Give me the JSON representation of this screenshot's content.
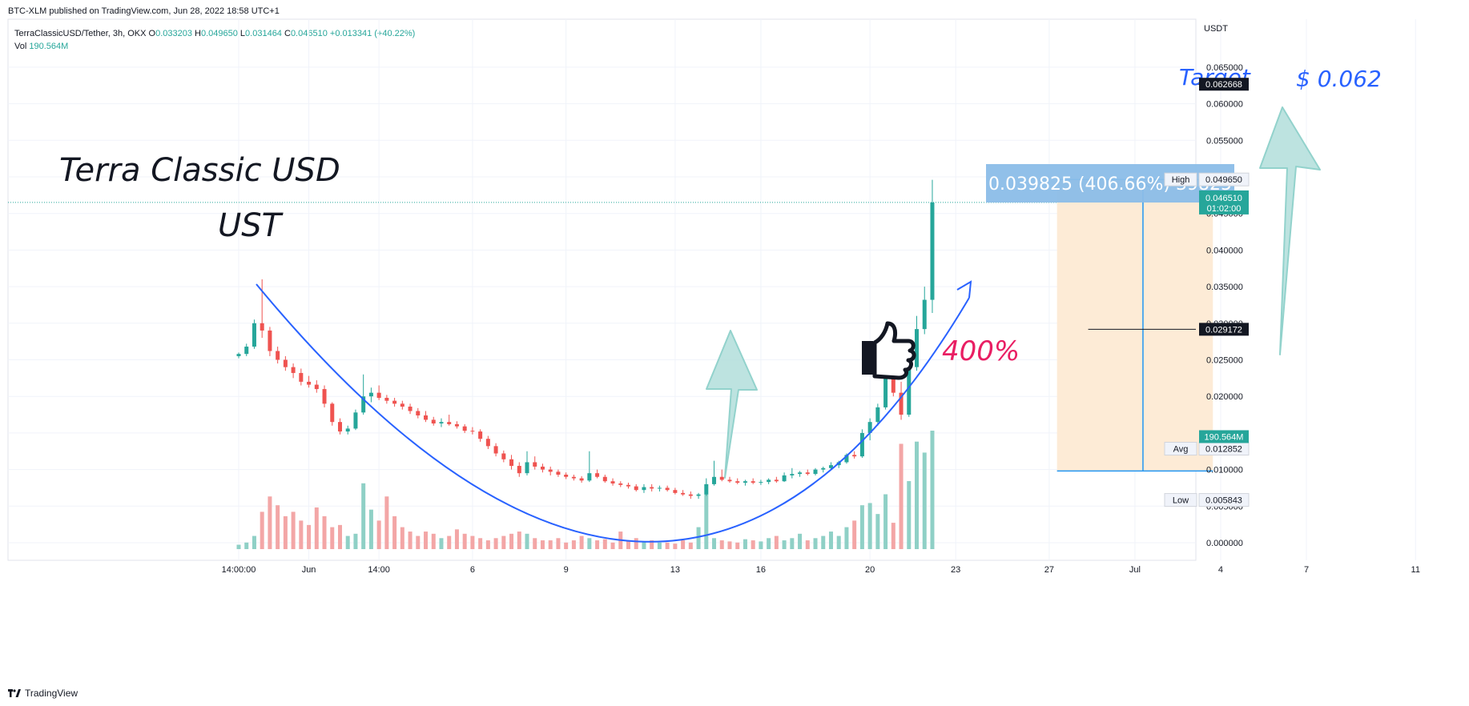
{
  "header": {
    "published": "BTC-XLM published on TradingView.com, Jun 28, 2022 18:58 UTC+1",
    "symbol": "TerraClassicUSD/Tether, 3h, OKX",
    "ohlc": [
      {
        "k": "O",
        "v": "0.033203"
      },
      {
        "k": "H",
        "v": "0.049650"
      },
      {
        "k": "L",
        "v": "0.031464"
      },
      {
        "k": "C",
        "v": "0.046510"
      },
      {
        "k": "",
        "v": "+0.013341 (+40.22%)"
      }
    ],
    "vol_label": "Vol",
    "vol_value": "190.564M"
  },
  "footer": {
    "brand": "TradingView"
  },
  "colors": {
    "up": "#26a69a",
    "down": "#ef5350",
    "vol_up": "#8fd0c6",
    "vol_down": "#f3a6a6",
    "curve": "#2962ff",
    "measure": "#2196f3",
    "range_fill": "#fdebd6",
    "arrow_fill": "#b2dfdb",
    "arrow_stroke": "#80cbc4"
  },
  "chart_data": {
    "type": "candlestick",
    "pair": "TerraClassicUSD/Tether",
    "interval": "3h",
    "exchange": "OKX",
    "y_unit": "USDT",
    "ylim": [
      -0.0003,
      0.0678
    ],
    "y_ticks": [
      {
        "v": 0.0,
        "label": "0.000000"
      },
      {
        "v": 0.005,
        "label": "0.005000"
      },
      {
        "v": 0.01,
        "label": "0.010000"
      },
      {
        "v": 0.015,
        "label": "0.015000"
      },
      {
        "v": 0.02,
        "label": "0.020000"
      },
      {
        "v": 0.025,
        "label": "0.025000"
      },
      {
        "v": 0.03,
        "label": "0.030000"
      },
      {
        "v": 0.035,
        "label": "0.035000"
      },
      {
        "v": 0.04,
        "label": "0.040000"
      },
      {
        "v": 0.045,
        "label": "0.045000"
      },
      {
        "v": 0.05,
        "label": "0.050000"
      },
      {
        "v": 0.055,
        "label": "0.055000"
      },
      {
        "v": 0.06,
        "label": "0.060000"
      },
      {
        "v": 0.065,
        "label": "0.065000"
      }
    ],
    "x_ticks": [
      {
        "t": 0,
        "label": "14:00:00"
      },
      {
        "t": 9,
        "label": "Jun"
      },
      {
        "t": 18,
        "label": "14:00"
      },
      {
        "t": 30,
        "label": "6"
      },
      {
        "t": 42,
        "label": "9"
      },
      {
        "t": 56,
        "label": "13"
      },
      {
        "t": 67,
        "label": "16"
      },
      {
        "t": 81,
        "label": "20"
      },
      {
        "t": 92,
        "label": "23"
      },
      {
        "t": 104,
        "label": "27"
      },
      {
        "t": 115,
        "label": "Jul"
      },
      {
        "t": 126,
        "label": "4"
      },
      {
        "t": 137,
        "label": "7"
      },
      {
        "t": 151,
        "label": "11"
      }
    ],
    "price_labels": [
      {
        "name": "High",
        "label": "High",
        "value": "0.049650",
        "v": 0.04965
      },
      {
        "name": "Last",
        "label": "",
        "value": "0.046510",
        "countdown": "01:02:00",
        "v": 0.04651
      },
      {
        "name": "Avg",
        "label": "Avg",
        "value": "0.012852",
        "v": 0.012852
      },
      {
        "name": "Low",
        "label": "Low",
        "value": "0.005843",
        "v": 0.005843
      },
      {
        "name": "Volume",
        "label": "",
        "value": "190.564M",
        "v": 0.0145
      }
    ],
    "horizontal_lines": [
      {
        "value": "0.062668",
        "v": 0.062668,
        "t_start": 126
      },
      {
        "value": "0.029172",
        "v": 0.029172,
        "t_start": 109
      }
    ],
    "measure": {
      "label": "0.039825 (406.66%) 39825",
      "from": 0.0098,
      "to": 0.04965,
      "t_start": 105,
      "t_end": 125
    },
    "candles": [
      [
        0.0255,
        0.026,
        0.0252,
        0.0258
      ],
      [
        0.0258,
        0.0272,
        0.0255,
        0.0268
      ],
      [
        0.0268,
        0.0305,
        0.0265,
        0.03
      ],
      [
        0.03,
        0.036,
        0.028,
        0.029
      ],
      [
        0.029,
        0.0295,
        0.0255,
        0.0262
      ],
      [
        0.0262,
        0.0268,
        0.0245,
        0.025
      ],
      [
        0.025,
        0.0255,
        0.0235,
        0.024
      ],
      [
        0.024,
        0.0245,
        0.0225,
        0.0232
      ],
      [
        0.0232,
        0.0238,
        0.0215,
        0.022
      ],
      [
        0.022,
        0.0228,
        0.0212,
        0.0216
      ],
      [
        0.0216,
        0.0222,
        0.0205,
        0.021
      ],
      [
        0.021,
        0.0215,
        0.0185,
        0.019
      ],
      [
        0.019,
        0.0192,
        0.016,
        0.0165
      ],
      [
        0.0165,
        0.017,
        0.0148,
        0.0152
      ],
      [
        0.0152,
        0.016,
        0.0148,
        0.0156
      ],
      [
        0.0156,
        0.0182,
        0.0154,
        0.0178
      ],
      [
        0.0178,
        0.023,
        0.0175,
        0.02
      ],
      [
        0.02,
        0.0212,
        0.0192,
        0.0205
      ],
      [
        0.0205,
        0.0215,
        0.0195,
        0.0198
      ],
      [
        0.0198,
        0.0202,
        0.019,
        0.0194
      ],
      [
        0.0194,
        0.0198,
        0.0186,
        0.019
      ],
      [
        0.019,
        0.0194,
        0.0182,
        0.0186
      ],
      [
        0.0186,
        0.019,
        0.0176,
        0.018
      ],
      [
        0.018,
        0.0184,
        0.017,
        0.0174
      ],
      [
        0.0174,
        0.018,
        0.0165,
        0.0168
      ],
      [
        0.0168,
        0.0172,
        0.016,
        0.0163
      ],
      [
        0.0163,
        0.017,
        0.0158,
        0.0165
      ],
      [
        0.0165,
        0.0175,
        0.016,
        0.0162
      ],
      [
        0.0162,
        0.0166,
        0.0156,
        0.0159
      ],
      [
        0.0159,
        0.0162,
        0.015,
        0.0153
      ],
      [
        0.0153,
        0.0158,
        0.0148,
        0.0152
      ],
      [
        0.0152,
        0.0155,
        0.0138,
        0.0142
      ],
      [
        0.0142,
        0.0146,
        0.0128,
        0.0132
      ],
      [
        0.0132,
        0.0136,
        0.0118,
        0.0122
      ],
      [
        0.0122,
        0.0126,
        0.011,
        0.0114
      ],
      [
        0.0114,
        0.012,
        0.01,
        0.0105
      ],
      [
        0.0105,
        0.011,
        0.009,
        0.0095
      ],
      [
        0.0095,
        0.0125,
        0.0092,
        0.011
      ],
      [
        0.011,
        0.0118,
        0.01,
        0.0104
      ],
      [
        0.0104,
        0.0108,
        0.0096,
        0.01
      ],
      [
        0.01,
        0.0104,
        0.0092,
        0.0097
      ],
      [
        0.0097,
        0.01,
        0.009,
        0.0093
      ],
      [
        0.0093,
        0.0096,
        0.0087,
        0.009
      ],
      [
        0.009,
        0.0093,
        0.0085,
        0.0088
      ],
      [
        0.0088,
        0.0091,
        0.0082,
        0.0085
      ],
      [
        0.0085,
        0.0125,
        0.0083,
        0.0095
      ],
      [
        0.0095,
        0.01,
        0.0088,
        0.009
      ],
      [
        0.009,
        0.0093,
        0.0082,
        0.0084
      ],
      [
        0.0084,
        0.0088,
        0.0078,
        0.0081
      ],
      [
        0.0081,
        0.0084,
        0.0076,
        0.0079
      ],
      [
        0.0079,
        0.0082,
        0.0074,
        0.0077
      ],
      [
        0.0077,
        0.008,
        0.007,
        0.0072
      ],
      [
        0.0072,
        0.008,
        0.0068,
        0.0076
      ],
      [
        0.0076,
        0.008,
        0.007,
        0.0074
      ],
      [
        0.0074,
        0.0078,
        0.007,
        0.0075
      ],
      [
        0.0075,
        0.0078,
        0.007,
        0.0072
      ],
      [
        0.0072,
        0.0075,
        0.0066,
        0.0068
      ],
      [
        0.0068,
        0.0072,
        0.0064,
        0.0066
      ],
      [
        0.0066,
        0.007,
        0.006,
        0.0064
      ],
      [
        0.0064,
        0.0068,
        0.006,
        0.0066
      ],
      [
        0.0066,
        0.0088,
        0.0064,
        0.008
      ],
      [
        0.008,
        0.0112,
        0.0078,
        0.009
      ],
      [
        0.009,
        0.01,
        0.0084,
        0.0086
      ],
      [
        0.0086,
        0.009,
        0.0082,
        0.0084
      ],
      [
        0.0084,
        0.0088,
        0.008,
        0.0082
      ],
      [
        0.0082,
        0.0086,
        0.0078,
        0.0084
      ],
      [
        0.0084,
        0.0088,
        0.008,
        0.0082
      ],
      [
        0.0082,
        0.0086,
        0.0079,
        0.0083
      ],
      [
        0.0083,
        0.0088,
        0.008,
        0.0086
      ],
      [
        0.0086,
        0.009,
        0.0082,
        0.0084
      ],
      [
        0.0084,
        0.0096,
        0.0083,
        0.0092
      ],
      [
        0.0092,
        0.0102,
        0.0088,
        0.0094
      ],
      [
        0.0094,
        0.0098,
        0.009,
        0.0096
      ],
      [
        0.0096,
        0.01,
        0.0092,
        0.0094
      ],
      [
        0.0094,
        0.0102,
        0.0092,
        0.01
      ],
      [
        0.01,
        0.0104,
        0.0096,
        0.0102
      ],
      [
        0.0102,
        0.011,
        0.01,
        0.0106
      ],
      [
        0.0106,
        0.0112,
        0.0102,
        0.011
      ],
      [
        0.011,
        0.0122,
        0.0108,
        0.012
      ],
      [
        0.012,
        0.0125,
        0.0115,
        0.0118
      ],
      [
        0.0118,
        0.0155,
        0.0116,
        0.015
      ],
      [
        0.015,
        0.017,
        0.014,
        0.0165
      ],
      [
        0.0165,
        0.019,
        0.016,
        0.0185
      ],
      [
        0.0185,
        0.027,
        0.0182,
        0.025
      ],
      [
        0.025,
        0.026,
        0.02,
        0.0205
      ],
      [
        0.0205,
        0.022,
        0.0168,
        0.0175
      ],
      [
        0.0175,
        0.025,
        0.0172,
        0.024
      ],
      [
        0.024,
        0.031,
        0.0235,
        0.0292
      ],
      [
        0.0292,
        0.035,
        0.0285,
        0.0332
      ],
      [
        0.0332,
        0.0496,
        0.0314,
        0.0465
      ]
    ],
    "volumes": [
      4,
      6,
      12,
      34,
      48,
      40,
      30,
      34,
      26,
      22,
      38,
      30,
      20,
      22,
      12,
      14,
      60,
      36,
      26,
      48,
      30,
      20,
      16,
      12,
      16,
      14,
      10,
      12,
      18,
      14,
      12,
      10,
      8,
      10,
      12,
      14,
      16,
      14,
      10,
      8,
      8,
      10,
      6,
      8,
      12,
      10,
      8,
      9,
      6,
      16,
      8,
      10,
      7,
      8,
      6,
      6,
      5,
      8,
      6,
      20,
      50,
      10,
      8,
      7,
      6,
      9,
      8,
      7,
      10,
      12,
      8,
      10,
      14,
      8,
      10,
      12,
      16,
      12,
      20,
      26,
      40,
      42,
      32,
      50,
      24,
      96,
      62,
      98,
      88,
      108
    ]
  },
  "annotations": {
    "title_line1": "Terra Classic USD",
    "title_line2": "UST",
    "target_label": "Target",
    "target_value": "$ 0.062",
    "pct_label": "400%"
  }
}
